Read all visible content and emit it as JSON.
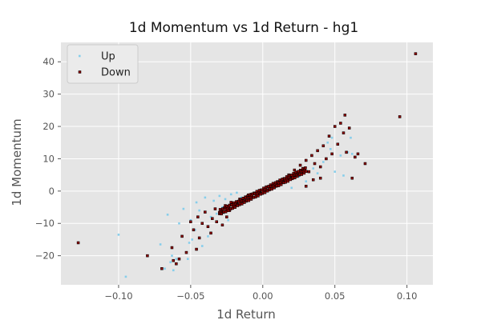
{
  "chart_data": {
    "type": "scatter",
    "title": "1d Momentum vs 1d Return - hg1",
    "xlabel": "1d Return",
    "ylabel": "1d Momentum",
    "xlim": [
      -0.14,
      0.118
    ],
    "ylim": [
      -29,
      46
    ],
    "xticks": [
      -0.1,
      -0.05,
      0.0,
      0.05,
      0.1
    ],
    "xtick_labels": [
      "−0.10",
      "−0.05",
      "0.00",
      "0.05",
      "0.10"
    ],
    "yticks": [
      -20,
      -10,
      0,
      10,
      20,
      30,
      40
    ],
    "ytick_labels": [
      "−20",
      "−10",
      "0",
      "10",
      "20",
      "30",
      "40"
    ],
    "grid": true,
    "legend_position": "top-left",
    "series": [
      {
        "name": "Up",
        "color": "#87ceeb",
        "points": [
          [
            -0.095,
            -26.5
          ],
          [
            -0.1,
            -13.5
          ],
          [
            -0.071,
            -16.5
          ],
          [
            -0.068,
            -24
          ],
          [
            -0.066,
            -7.3
          ],
          [
            -0.064,
            -22
          ],
          [
            -0.063,
            -20
          ],
          [
            -0.062,
            -24.5
          ],
          [
            -0.06,
            -21
          ],
          [
            -0.058,
            -10
          ],
          [
            -0.055,
            -5.5
          ],
          [
            -0.052,
            -21
          ],
          [
            -0.051,
            -16
          ],
          [
            -0.05,
            -9
          ],
          [
            -0.049,
            -15
          ],
          [
            -0.047,
            -12
          ],
          [
            -0.046,
            -3.5
          ],
          [
            -0.044,
            -6
          ],
          [
            -0.042,
            -17
          ],
          [
            -0.04,
            -2
          ],
          [
            -0.038,
            -14
          ],
          [
            -0.036,
            -8
          ],
          [
            -0.034,
            -3
          ],
          [
            -0.032,
            -7
          ],
          [
            -0.03,
            -1.5
          ],
          [
            -0.028,
            -5
          ],
          [
            -0.026,
            -2.5
          ],
          [
            -0.024,
            -9
          ],
          [
            -0.022,
            -1
          ],
          [
            -0.02,
            -4
          ],
          [
            -0.018,
            -0.5
          ],
          [
            -0.015,
            -2
          ],
          [
            0.015,
            2.5
          ],
          [
            0.02,
            1.0
          ],
          [
            0.025,
            4.5
          ],
          [
            0.03,
            3.0
          ],
          [
            0.035,
            7.0
          ],
          [
            0.038,
            5.5
          ],
          [
            0.042,
            9.0
          ],
          [
            0.045,
            15.0
          ],
          [
            0.048,
            16.5
          ],
          [
            0.05,
            6.0
          ],
          [
            0.054,
            11.0
          ],
          [
            0.056,
            4.8
          ],
          [
            0.059,
            12.0
          ],
          [
            0.061,
            16.5
          ],
          [
            0.062,
            11.5
          ],
          [
            0.047,
            13.0
          ]
        ]
      },
      {
        "name": "Down",
        "color": "#8b0000",
        "points": [
          [
            -0.128,
            -16
          ],
          [
            -0.08,
            -20
          ],
          [
            -0.07,
            -24
          ],
          [
            -0.063,
            -17.5
          ],
          [
            -0.062,
            -21.5
          ],
          [
            -0.06,
            -22.5
          ],
          [
            -0.058,
            -21
          ],
          [
            -0.056,
            -14
          ],
          [
            -0.053,
            -19
          ],
          [
            -0.05,
            -9.5
          ],
          [
            -0.048,
            -12
          ],
          [
            -0.046,
            -18
          ],
          [
            -0.045,
            -8
          ],
          [
            -0.044,
            -14.5
          ],
          [
            -0.042,
            -10
          ],
          [
            -0.04,
            -6.5
          ],
          [
            -0.038,
            -11
          ],
          [
            -0.036,
            -13
          ],
          [
            -0.035,
            -8.5
          ],
          [
            -0.033,
            -5.5
          ],
          [
            -0.032,
            -9.5
          ],
          [
            -0.03,
            -7
          ],
          [
            -0.028,
            -10.5
          ],
          [
            -0.026,
            -4.5
          ],
          [
            -0.025,
            -8
          ],
          [
            -0.023,
            -6
          ],
          [
            -0.022,
            -3.5
          ],
          [
            -0.02,
            -5
          ],
          [
            -0.018,
            -4
          ],
          [
            -0.016,
            -2.5
          ],
          [
            -0.014,
            -3
          ],
          [
            -0.012,
            -1.8
          ],
          [
            -0.01,
            -1.2
          ],
          [
            -0.008,
            -1.0
          ],
          [
            -0.006,
            -0.6
          ],
          [
            -0.004,
            -0.4
          ],
          [
            -0.002,
            -0.2
          ],
          [
            0.002,
            0.3
          ],
          [
            0.005,
            1.2
          ],
          [
            0.008,
            1.8
          ],
          [
            0.01,
            2.0
          ],
          [
            0.012,
            3.0
          ],
          [
            0.015,
            3.5
          ],
          [
            0.018,
            5.0
          ],
          [
            0.02,
            4.0
          ],
          [
            0.022,
            6.5
          ],
          [
            0.024,
            5.5
          ],
          [
            0.026,
            8.0
          ],
          [
            0.028,
            7.0
          ],
          [
            0.03,
            9.5
          ],
          [
            0.032,
            6.0
          ],
          [
            0.034,
            11.0
          ],
          [
            0.036,
            8.5
          ],
          [
            0.038,
            12.5
          ],
          [
            0.04,
            7.5
          ],
          [
            0.042,
            14.0
          ],
          [
            0.044,
            10.0
          ],
          [
            0.046,
            17.0
          ],
          [
            0.048,
            11.5
          ],
          [
            0.05,
            20.0
          ],
          [
            0.052,
            14.5
          ],
          [
            0.054,
            21.0
          ],
          [
            0.056,
            18.0
          ],
          [
            0.057,
            23.5
          ],
          [
            0.058,
            12.0
          ],
          [
            0.06,
            19.5
          ],
          [
            0.062,
            4.0
          ],
          [
            0.064,
            10.5
          ],
          [
            0.066,
            11.5
          ],
          [
            0.071,
            8.5
          ],
          [
            0.095,
            23.0
          ],
          [
            0.106,
            42.5
          ],
          [
            0.04,
            4.0
          ],
          [
            0.035,
            3.5
          ],
          [
            0.03,
            1.5
          ]
        ]
      }
    ]
  }
}
